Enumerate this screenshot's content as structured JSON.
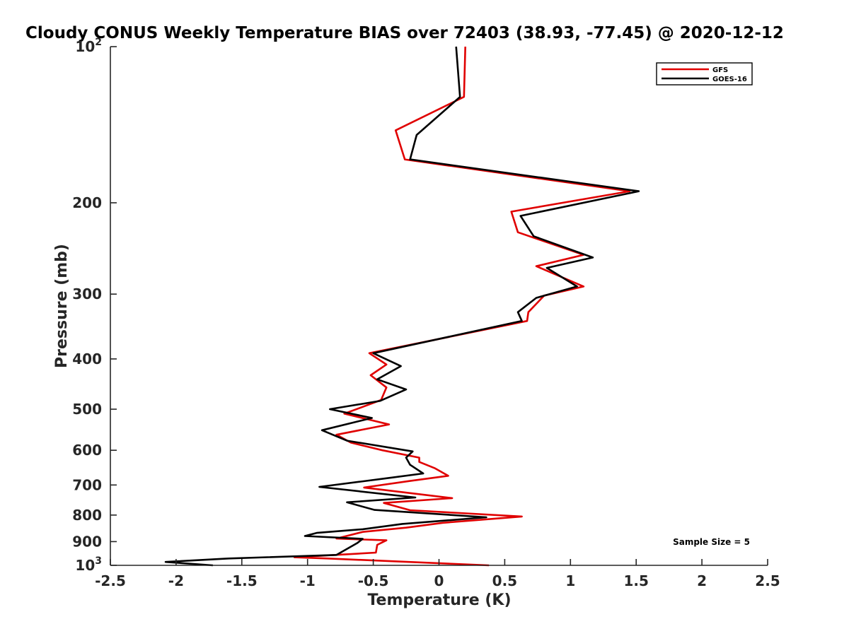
{
  "chart_data": {
    "type": "line",
    "title": "Cloudy CONUS Weekly Temperature BIAS over 72403 (38.93, -77.45) @ 2020-12-12",
    "xlabel": "Temperature (K)",
    "ylabel": "Pressure (mb)",
    "xlim": [
      -2.5,
      2.5
    ],
    "ylim": [
      100,
      1000
    ],
    "y_scale": "log",
    "y_reversed": true,
    "x_ticks": [
      -2.5,
      -2,
      -1.5,
      -1,
      -0.5,
      0,
      0.5,
      1,
      1.5,
      2,
      2.5
    ],
    "x_tick_labels": [
      "-2.5",
      "-2",
      "-1.5",
      "-1",
      "-0.5",
      "0",
      "0.5",
      "1",
      "1.5",
      "2",
      "2.5"
    ],
    "y_ticks": [
      100,
      200,
      300,
      400,
      500,
      600,
      700,
      800,
      900,
      1000
    ],
    "y_tick_labels": [
      {
        "base": "10",
        "exp": "2"
      },
      {
        "base": "200",
        "exp": ""
      },
      {
        "base": "300",
        "exp": ""
      },
      {
        "base": "400",
        "exp": ""
      },
      {
        "base": "500",
        "exp": ""
      },
      {
        "base": "600",
        "exp": ""
      },
      {
        "base": "700",
        "exp": ""
      },
      {
        "base": "800",
        "exp": ""
      },
      {
        "base": "900",
        "exp": ""
      },
      {
        "base": "10",
        "exp": "3"
      }
    ],
    "grid": false,
    "legend_position": "top-right",
    "annotation": "Sample Size = 5",
    "series": [
      {
        "name": "GFS",
        "color": "#e00000",
        "points": [
          [
            0.2,
            100
          ],
          [
            0.19,
            125
          ],
          [
            -0.33,
            145
          ],
          [
            -0.26,
            165
          ],
          [
            1.45,
            190
          ],
          [
            0.55,
            208
          ],
          [
            0.6,
            228
          ],
          [
            1.1,
            252
          ],
          [
            0.74,
            265
          ],
          [
            1.1,
            290
          ],
          [
            0.8,
            302
          ],
          [
            0.68,
            325
          ],
          [
            0.67,
            338
          ],
          [
            -0.53,
            390
          ],
          [
            -0.4,
            410
          ],
          [
            -0.52,
            430
          ],
          [
            -0.4,
            454
          ],
          [
            -0.44,
            480
          ],
          [
            -0.72,
            510
          ],
          [
            -0.38,
            535
          ],
          [
            -0.78,
            560
          ],
          [
            -0.67,
            580
          ],
          [
            -0.43,
            600
          ],
          [
            -0.15,
            620
          ],
          [
            -0.15,
            632
          ],
          [
            -0.03,
            650
          ],
          [
            0.07,
            672
          ],
          [
            -0.23,
            688
          ],
          [
            -0.57,
            708
          ],
          [
            0.1,
            742
          ],
          [
            -0.42,
            758
          ],
          [
            -0.22,
            783
          ],
          [
            0.63,
            805
          ],
          [
            0.03,
            828
          ],
          [
            -0.25,
            846
          ],
          [
            -0.58,
            862
          ],
          [
            -0.78,
            888
          ],
          [
            -0.4,
            895
          ],
          [
            -0.47,
            913
          ],
          [
            -0.48,
            945
          ],
          [
            -1.1,
            965
          ],
          [
            -0.85,
            970
          ],
          [
            0.38,
            1000
          ]
        ]
      },
      {
        "name": "GOES-16",
        "color": "#000000",
        "points": [
          [
            0.13,
            100
          ],
          [
            0.16,
            125
          ],
          [
            -0.17,
            148
          ],
          [
            -0.22,
            165
          ],
          [
            1.52,
            190
          ],
          [
            0.62,
            212
          ],
          [
            0.72,
            232
          ],
          [
            1.17,
            255
          ],
          [
            0.82,
            267
          ],
          [
            1.05,
            290
          ],
          [
            0.74,
            305
          ],
          [
            0.6,
            325
          ],
          [
            0.63,
            338
          ],
          [
            -0.5,
            390
          ],
          [
            -0.29,
            413
          ],
          [
            -0.47,
            438
          ],
          [
            -0.25,
            458
          ],
          [
            -0.45,
            482
          ],
          [
            -0.83,
            500
          ],
          [
            -0.51,
            520
          ],
          [
            -0.89,
            549
          ],
          [
            -0.7,
            575
          ],
          [
            -0.2,
            603
          ],
          [
            -0.25,
            620
          ],
          [
            -0.22,
            640
          ],
          [
            -0.12,
            665
          ],
          [
            -0.41,
            680
          ],
          [
            -0.91,
            706
          ],
          [
            -0.18,
            740
          ],
          [
            -0.7,
            756
          ],
          [
            -0.49,
            782
          ],
          [
            0.36,
            808
          ],
          [
            -0.28,
            832
          ],
          [
            -0.58,
            852
          ],
          [
            -0.93,
            866
          ],
          [
            -1.02,
            878
          ],
          [
            -0.58,
            889
          ],
          [
            -0.62,
            905
          ],
          [
            -0.78,
            955
          ],
          [
            -1.6,
            970
          ],
          [
            -2.08,
            985
          ],
          [
            -1.72,
            1000
          ]
        ]
      }
    ]
  }
}
